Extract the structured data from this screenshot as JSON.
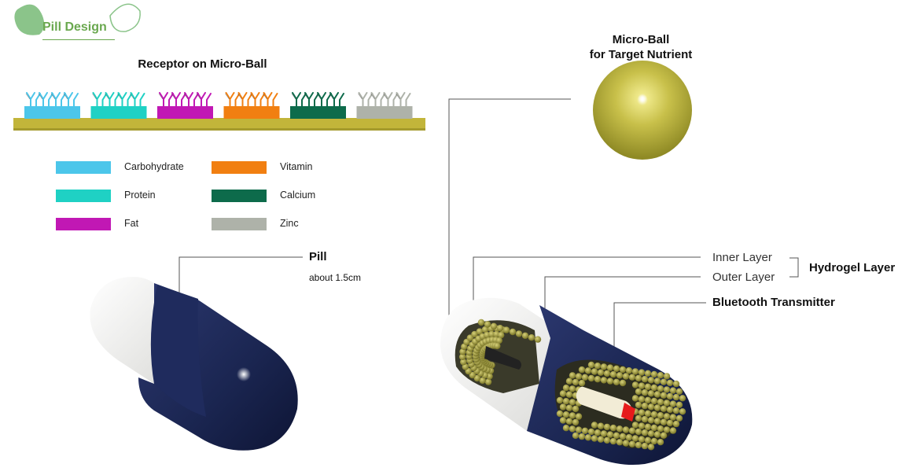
{
  "header": {
    "title": "Pill Design"
  },
  "receptor": {
    "title": "Receptor on Micro-Ball",
    "legend": [
      {
        "label": "Carbohydrate",
        "color": "#4cc6ea"
      },
      {
        "label": "Vitamin",
        "color": "#f17f11"
      },
      {
        "label": "Protein",
        "color": "#1fd1c4"
      },
      {
        "label": "Calcium",
        "color": "#0d6b4b"
      },
      {
        "label": "Fat",
        "color": "#c118b4"
      },
      {
        "label": "Zinc",
        "color": "#aeb2a9"
      }
    ]
  },
  "microball": {
    "title_line1": "Micro-Ball",
    "title_line2": "for Target Nutrient"
  },
  "pill": {
    "title": "Pill",
    "size": "about 1.5cm"
  },
  "cutaway": {
    "inner_layer": "Inner Layer",
    "outer_layer": "Outer Layer",
    "hydrogel_layer": "Hydrogel Layer",
    "bluetooth": "Bluetooth Transmitter"
  },
  "colors": {
    "accent": "#6aa84f",
    "base_bar": "#c2b53a",
    "capsule_dark": "#1a2550",
    "capsule_light": "#f0f0ee",
    "ball": "#b8b23a"
  }
}
